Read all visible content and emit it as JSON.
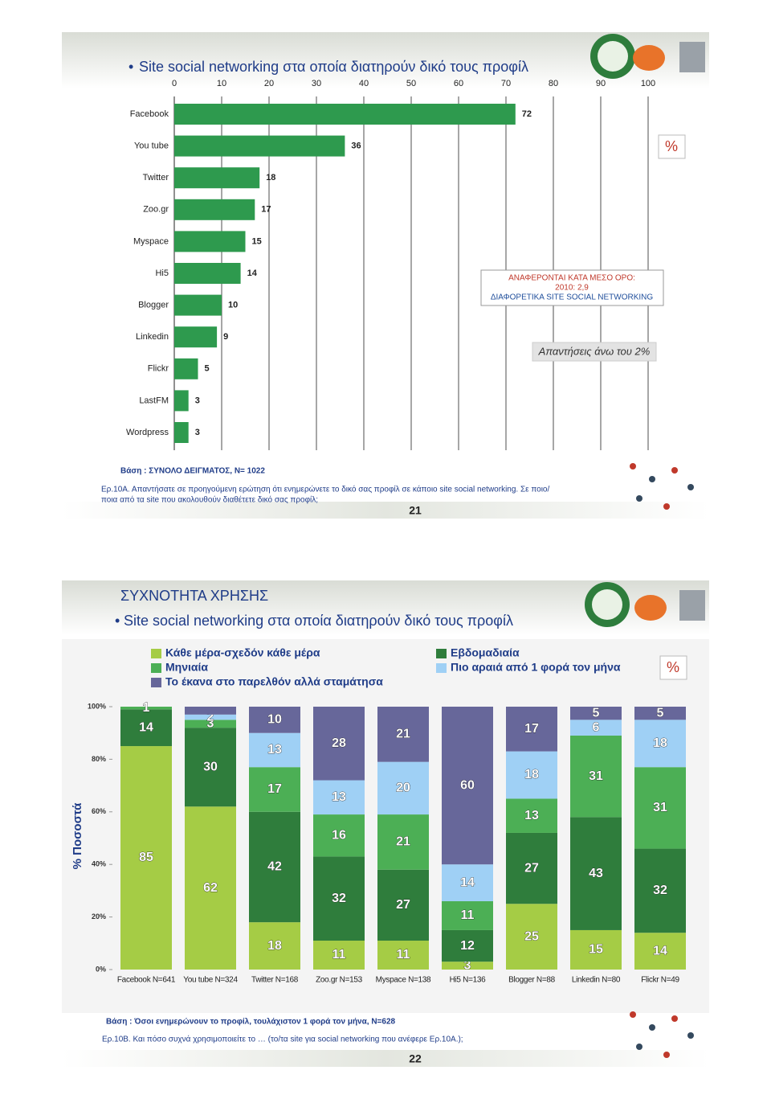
{
  "chart_data": [
    {
      "type": "bar",
      "title": "Site social networking στα οποία διατηρούν δικό τους προφίλ",
      "categories": [
        "Facebook",
        "You tube",
        "Twitter",
        "Zoo.gr",
        "Myspace",
        "Hi5",
        "Blogger",
        "Linkedin",
        "Flickr",
        "LastFM",
        "Wordpress"
      ],
      "values": [
        72,
        36,
        18,
        17,
        15,
        14,
        10,
        9,
        5,
        3,
        3
      ],
      "color": "#2e9a4e",
      "xlim": [
        0,
        100
      ],
      "xticks": [
        0,
        10,
        20,
        30,
        40,
        50,
        60,
        70,
        80,
        90,
        100
      ],
      "grid": true,
      "unit": "%",
      "annotations": [
        "ΑΝΑΦΕΡΟΝΤΑΙ ΚΑΤΑ ΜΕΣΟ ΟΡΟ:",
        "2010: 2,9",
        "ΔΙΑΦΟΡΕΤΙΚΑ SITE SOCIAL NETWORKING",
        "Απαντήσεις άνω του 2%"
      ],
      "base": "Βάση : ΣΥΝΟΛΟ ΔΕΙΓΜΑΤΟΣ, N= 1022",
      "question": [
        "Ερ.10Α. Απαντήσατε σε προηγούμενη ερώτηση ότι ενημερώνετε το δικό σας προφίλ σε κάποιο site social networking. Σε ποιο/",
        "ποια από τα site που ακολουθούν διαθέτετε δικό σας προφίλ;"
      ],
      "page": "21"
    },
    {
      "type": "stacked_bar",
      "heading": "ΣΥΧΝΟΤΗΤΑ ΧΡΗΣΗΣ",
      "title": "Site social networking στα οποία διατηρούν δικό τους προφίλ",
      "categories": [
        "Facebook N=641",
        "You tube N=324",
        "Twitter N=168",
        "Zoo.gr N=153",
        "Myspace N=138",
        "Hi5 N=136",
        "Blogger N=88",
        "Linkedin N=80",
        "Flickr N=49"
      ],
      "series": [
        {
          "name": "Κάθε μέρα-σχεδόν κάθε μέρα",
          "color": "#a5cc45",
          "values": [
            85,
            62,
            18,
            11,
            11,
            3,
            25,
            15,
            14
          ]
        },
        {
          "name": "Εβδομαδιαία",
          "color": "#2f7d3c",
          "values": [
            14,
            30,
            42,
            32,
            27,
            12,
            27,
            43,
            32
          ]
        },
        {
          "name": "Μηνιαία",
          "color": "#4caf55",
          "values": [
            1,
            3,
            17,
            16,
            21,
            11,
            13,
            31,
            31
          ]
        },
        {
          "name": "Πιο αραιά από 1 φορά τον μήνα",
          "color": "#9fd0f5",
          "values": [
            null,
            2,
            13,
            13,
            20,
            14,
            18,
            6,
            18
          ]
        },
        {
          "name": "Το έκανα στο παρελθόν αλλά σταμάτησα",
          "color": "#67679a",
          "values": [
            null,
            3,
            10,
            28,
            21,
            60,
            17,
            5,
            5
          ],
          "value_labels": [
            null,
            null,
            "10",
            "28",
            "21",
            "60",
            "17",
            "5",
            "5"
          ]
        }
      ],
      "ylim": [
        0,
        100
      ],
      "yticks": [
        {
          "value": 0,
          "label": "0%"
        },
        {
          "value": 20,
          "label": "20%"
        },
        {
          "value": 40,
          "label": "40%"
        },
        {
          "value": 60,
          "label": "60%"
        },
        {
          "value": 80,
          "label": "80%"
        },
        {
          "value": 100,
          "label": "100%"
        }
      ],
      "ylabel": "% Ποσοστά",
      "legend": "top",
      "unit": "%",
      "base": "Βάση : Όσοι ενημερώνουν το προφίλ, τουλάχιστον 1 φορά τον μήνα, Ν=628",
      "question": [
        "Ερ.10Β. Και πόσο συχνά χρησιμοποιείτε το … (το/τα site για social networking που ανέφερε Ερ.10Α.);"
      ],
      "page": "22"
    }
  ]
}
